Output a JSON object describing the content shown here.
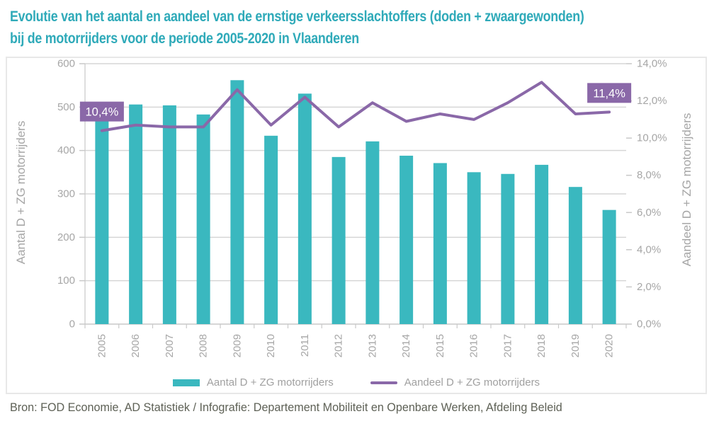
{
  "title": {
    "line1": "Evolutie van het aantal en aandeel van de ernstige verkeersslachtoffers (doden + zwaargewonden)",
    "line2": "bij de motorrijders voor de periode 2005-2020 in Vlaanderen"
  },
  "source": "Bron: FOD Economie, AD Statistiek / Infografie: Departement Mobiliteit en Openbare Werken, Afdeling Beleid",
  "colors": {
    "bar_teal": "#3ab8bf",
    "title_teal": "#2faab9",
    "line_purple": "#8a68a8",
    "callout_bg": "#8a68a8",
    "callout_text": "#ffffff",
    "gridline": "#d6d6d6",
    "axis_line": "#c9c9c9",
    "tick_text": "#a6a6a6",
    "legend_text": "#a0a0a0",
    "source_text": "#5e6156",
    "frame_border": "#e8e8e8"
  },
  "legend": {
    "items": [
      {
        "label": "Aantal D + ZG motorrijders",
        "swatch": "bar"
      },
      {
        "label": "Aandeel D + ZG motorrijders",
        "swatch": "line"
      }
    ]
  },
  "chart_data": {
    "type": "bar+line combo",
    "title": "Evolutie van het aantal en aandeel van de ernstige verkeersslachtoffers (doden + zwaargewonden) bij de motorrijders voor de periode 2005-2020 in Vlaanderen",
    "categories": [
      "2005",
      "2006",
      "2007",
      "2008",
      "2009",
      "2010",
      "2011",
      "2012",
      "2013",
      "2014",
      "2015",
      "2016",
      "2017",
      "2018",
      "2019",
      "2020"
    ],
    "series": [
      {
        "name": "Aantal D + ZG motorrijders",
        "type": "bar",
        "axis": "left",
        "color": "#3ab8bf",
        "values": [
          500,
          506,
          504,
          483,
          562,
          434,
          531,
          385,
          421,
          388,
          371,
          350,
          346,
          367,
          316,
          263
        ]
      },
      {
        "name": "Aandeel D + ZG motorrijders",
        "type": "line",
        "axis": "right",
        "color": "#8a68a8",
        "values": [
          10.4,
          10.7,
          10.6,
          10.6,
          12.6,
          10.7,
          12.2,
          10.6,
          11.9,
          10.9,
          11.3,
          11.0,
          11.9,
          13.0,
          11.3,
          11.4
        ]
      }
    ],
    "left_axis": {
      "title": "Aantal D + ZG motorrijders",
      "min": 0,
      "max": 600,
      "step": 100,
      "tick_labels": [
        "0",
        "100",
        "200",
        "300",
        "400",
        "500",
        "600"
      ]
    },
    "right_axis": {
      "title": "Aandeel D + ZG motorrijders",
      "min": 0,
      "max": 14,
      "step": 2,
      "tick_labels": [
        "0,0%",
        "2,0%",
        "4,0%",
        "6,0%",
        "8,0%",
        "10,0%",
        "12,0%",
        "14,0%"
      ]
    },
    "callouts": [
      {
        "category": "2005",
        "text": "10,4%"
      },
      {
        "category": "2020",
        "text": "11,4%"
      }
    ],
    "grid": true,
    "legend_position": "bottom",
    "x_tick_rotation": -90
  }
}
